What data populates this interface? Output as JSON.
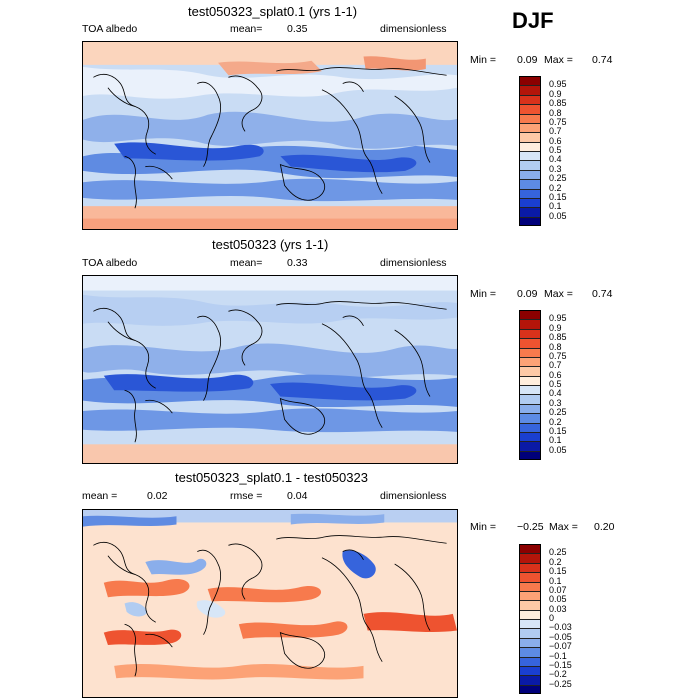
{
  "season": "DJF",
  "panels": [
    {
      "title": "test050323_splat0.1 (yrs 1-1)",
      "left_label": "TOA albedo",
      "mean_label": "mean=",
      "mean_value": "0.35",
      "units": "dimensionless",
      "min_label": "Min =",
      "min_value": "0.09",
      "max_label": "Max =",
      "max_value": "0.74",
      "colorbar_labels": [
        "0.95",
        "0.9",
        "0.85",
        "0.8",
        "0.75",
        "0.7",
        "0.6",
        "0.5",
        "0.4",
        "0.3",
        "0.25",
        "0.2",
        "0.15",
        "0.1",
        "0.05"
      ],
      "colorbar_colors": [
        "#8b0000",
        "#b3150a",
        "#d8321b",
        "#ee5330",
        "#f77a4d",
        "#fca276",
        "#fdc9a6",
        "#ffeedd",
        "#d7e6f7",
        "#b1ccf1",
        "#8aaeeb",
        "#5d8be4",
        "#3664dc",
        "#1a3fd0",
        "#0a1aa6",
        "#00007a"
      ]
    },
    {
      "title": "test050323 (yrs 1-1)",
      "left_label": "TOA albedo",
      "mean_label": "mean=",
      "mean_value": "0.33",
      "units": "dimensionless",
      "min_label": "Min =",
      "min_value": "0.09",
      "max_label": "Max =",
      "max_value": "0.74",
      "colorbar_labels": [
        "0.95",
        "0.9",
        "0.85",
        "0.8",
        "0.75",
        "0.7",
        "0.6",
        "0.5",
        "0.4",
        "0.3",
        "0.25",
        "0.2",
        "0.15",
        "0.1",
        "0.05"
      ],
      "colorbar_colors": [
        "#8b0000",
        "#b3150a",
        "#d8321b",
        "#ee5330",
        "#f77a4d",
        "#fca276",
        "#fdc9a6",
        "#ffeedd",
        "#d7e6f7",
        "#b1ccf1",
        "#8aaeeb",
        "#5d8be4",
        "#3664dc",
        "#1a3fd0",
        "#0a1aa6",
        "#00007a"
      ]
    },
    {
      "title": "test050323_splat0.1 - test050323",
      "left_label": "mean =",
      "mean_value": "0.02",
      "rmse_label": "rmse =",
      "rmse_value": "0.04",
      "units": "dimensionless",
      "min_label": "Min =",
      "min_value": "−0.25",
      "max_label": "Max =",
      "max_value": "0.20",
      "colorbar_labels": [
        "0.25",
        "0.2",
        "0.15",
        "0.1",
        "0.07",
        "0.05",
        "0.03",
        "0",
        "−0.03",
        "−0.05",
        "−0.07",
        "−0.1",
        "−0.15",
        "−0.2",
        "−0.25"
      ],
      "colorbar_colors": [
        "#8b0000",
        "#b3150a",
        "#d8321b",
        "#ee5330",
        "#f77a4d",
        "#fca276",
        "#fdc9a6",
        "#ffeedd",
        "#d7e6f7",
        "#b1ccf1",
        "#8aaeeb",
        "#5d8be4",
        "#3664dc",
        "#1a3fd0",
        "#0a1aa6",
        "#00007a"
      ]
    }
  ]
}
